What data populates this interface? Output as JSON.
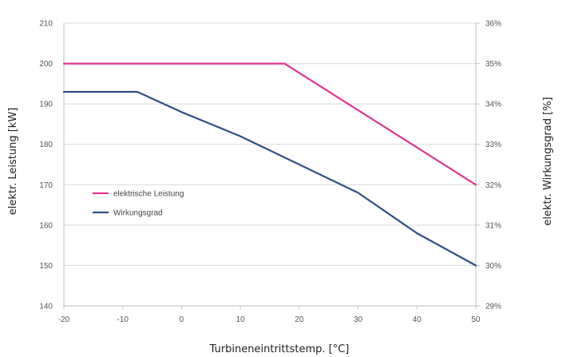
{
  "chart_data": {
    "type": "line",
    "title": "",
    "xlabel": "Turbineneintrittstemp. [°C]",
    "ylabel": "elektr. Leistung [kW]",
    "y2label": "elektr. Wirkungsgrad [%]",
    "x_ticks": [
      "-20",
      "-10",
      "0",
      "10",
      "20",
      "30",
      "40",
      "50"
    ],
    "y_ticks": [
      "140",
      "150",
      "160",
      "170",
      "180",
      "190",
      "200",
      "210"
    ],
    "y2_ticks": [
      "29%",
      "30%",
      "31%",
      "32%",
      "33%",
      "34%",
      "35%",
      "36%"
    ],
    "xlim": [
      -20,
      50
    ],
    "ylim": [
      140,
      210
    ],
    "y2lim": [
      29,
      36
    ],
    "grid": "horizontal",
    "legend_position": "center-left",
    "series": [
      {
        "name": "elektrische Leistung",
        "axis": "left",
        "color": "#e0348f",
        "x": [
          -20,
          17.5,
          50
        ],
        "y": [
          200,
          200,
          170
        ]
      },
      {
        "name": "Wirkungsgrad",
        "axis": "right",
        "color": "#2f4f86",
        "x": [
          -20,
          -7.5,
          0,
          10,
          20,
          30,
          40,
          50
        ],
        "y": [
          34.3,
          34.3,
          33.8,
          33.2,
          32.5,
          31.8,
          30.8,
          30.0
        ]
      }
    ]
  }
}
